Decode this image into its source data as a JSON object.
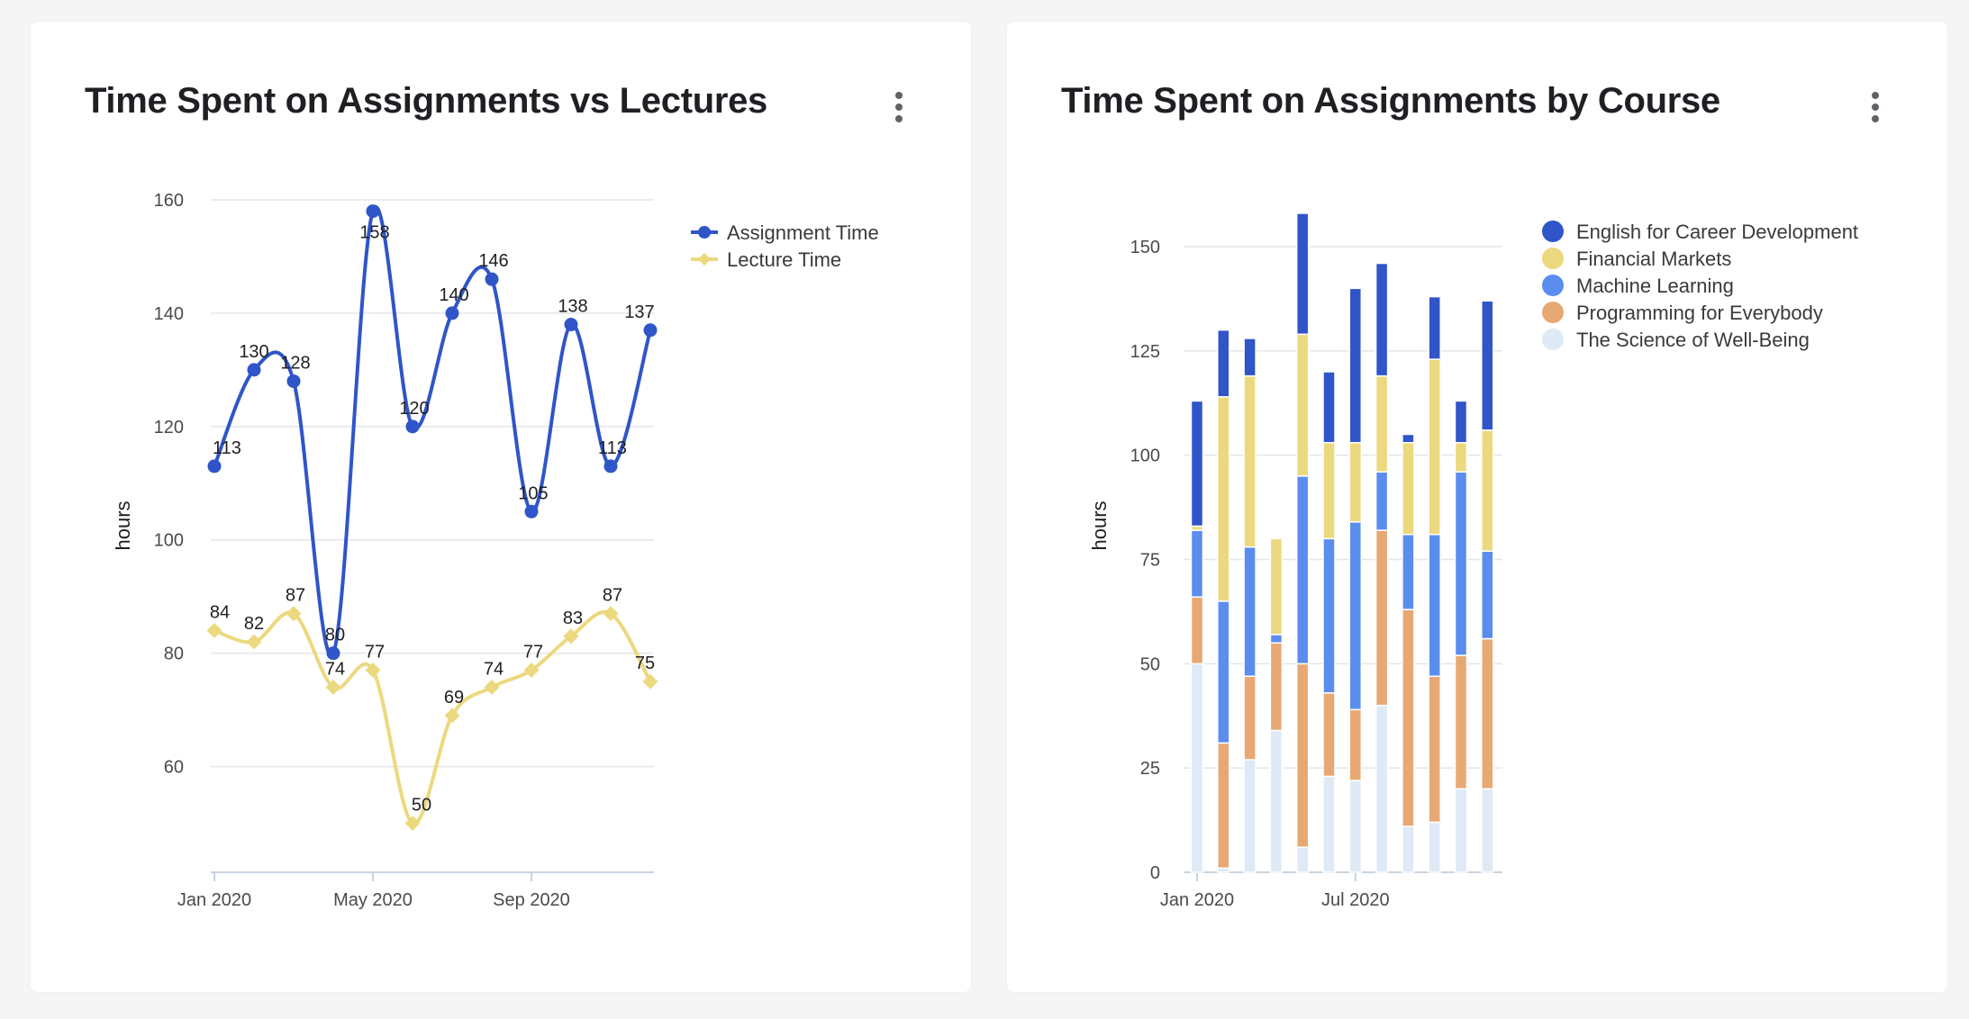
{
  "colors": {
    "assignment": "#2f55c8",
    "lecture": "#ecd97f",
    "english": "#2f55c8",
    "financial": "#ecd97f",
    "ml": "#5b8def",
    "programming": "#e7a874",
    "wellbeing": "#deeaf5",
    "grid": "#e3e6ea",
    "axis": "#c7d3e0"
  },
  "left_card": {
    "title": "Time Spent on Assignments vs Lectures",
    "menu_icon": "more-vert-icon"
  },
  "right_card": {
    "title": "Time Spent on Assignments by Course",
    "menu_icon": "more-vert-icon"
  },
  "chart_data": [
    {
      "type": "line",
      "title": "Time Spent on Assignments vs Lectures",
      "ylabel": "hours",
      "xlabel": "",
      "x": [
        "2020-01",
        "2020-02",
        "2020-03",
        "2020-04",
        "2020-05",
        "2020-06",
        "2020-07",
        "2020-08",
        "2020-09",
        "2020-10",
        "2020-11",
        "2020-12"
      ],
      "x_tick_labels": [
        {
          "x": "2020-01",
          "label": "Jan 2020"
        },
        {
          "x": "2020-05",
          "label": "May 2020"
        },
        {
          "x": "2020-09",
          "label": "Sep 2020"
        }
      ],
      "ylim": [
        45,
        160
      ],
      "y_ticks": [
        60,
        80,
        100,
        120,
        140,
        160
      ],
      "grid": true,
      "legend_position": "right",
      "series": [
        {
          "name": "Assignment Time",
          "marker": "circle",
          "color_key": "assignment",
          "values": [
            113,
            130,
            128,
            80,
            158,
            120,
            140,
            146,
            105,
            138,
            113,
            137
          ]
        },
        {
          "name": "Lecture Time",
          "marker": "diamond",
          "color_key": "lecture",
          "values": [
            84,
            82,
            87,
            74,
            77,
            50,
            69,
            74,
            77,
            83,
            87,
            75
          ]
        }
      ]
    },
    {
      "type": "bar",
      "stacked": true,
      "title": "Time Spent on Assignments by Course",
      "ylabel": "hours",
      "xlabel": "",
      "x": [
        "2020-01",
        "2020-02",
        "2020-03",
        "2020-04",
        "2020-05",
        "2020-06",
        "2020-07",
        "2020-08",
        "2020-09",
        "2020-10",
        "2020-11",
        "2020-12"
      ],
      "x_tick_labels": [
        {
          "x": "2020-01",
          "label": "Jan 2020"
        },
        {
          "x": "2020-07",
          "label": "Jul 2020"
        }
      ],
      "ylim": [
        0,
        158
      ],
      "y_ticks": [
        0,
        25,
        50,
        75,
        100,
        125,
        150
      ],
      "grid": true,
      "legend_position": "top-right",
      "series": [
        {
          "name": "The Science of Well-Being",
          "color_key": "wellbeing",
          "values": [
            50,
            1,
            27,
            34,
            6,
            23,
            22,
            40,
            11,
            12,
            20,
            20
          ]
        },
        {
          "name": "Programming for Everybody",
          "color_key": "programming",
          "values": [
            16,
            30,
            20,
            21,
            44,
            20,
            17,
            42,
            52,
            35,
            32,
            36
          ]
        },
        {
          "name": "Machine Learning",
          "color_key": "ml",
          "values": [
            16,
            34,
            31,
            2,
            45,
            37,
            45,
            14,
            18,
            34,
            44,
            21
          ]
        },
        {
          "name": "Financial Markets",
          "color_key": "financial",
          "values": [
            1,
            49,
            41,
            23,
            34,
            23,
            19,
            23,
            22,
            42,
            7,
            29
          ]
        },
        {
          "name": "English for Career Development",
          "color_key": "english",
          "values": [
            30,
            16,
            9,
            0,
            29,
            17,
            37,
            27,
            2,
            15,
            10,
            31
          ]
        }
      ],
      "legend_order": [
        "English for Career Development",
        "Financial Markets",
        "Machine Learning",
        "Programming for Everybody",
        "The Science of Well-Being"
      ]
    }
  ]
}
